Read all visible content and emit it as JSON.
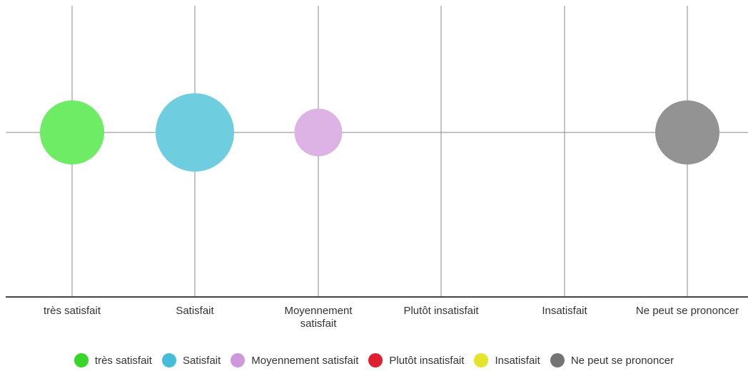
{
  "chart_data": {
    "type": "scatter",
    "variant": "bubble",
    "title": "",
    "xlabel": "",
    "ylabel": "",
    "grid": true,
    "legend_position": "bottom",
    "categories": [
      "très satisfait",
      "Satisfait",
      "Moyennement satisfait",
      "Plutôt insatisfait",
      "Insatisfait",
      "Ne peut se prononcer"
    ],
    "tick_labels": [
      [
        "très satisfait"
      ],
      [
        "Satisfait"
      ],
      [
        "Moyennement",
        "satisfait"
      ],
      [
        "Plutôt insatisfait"
      ],
      [
        "Insatisfait"
      ],
      [
        "Ne peut se prononcer"
      ]
    ],
    "series": [
      {
        "name": "très satisfait",
        "color": "#6fec65",
        "legend_color": "#38d62a",
        "x": "très satisfait",
        "size": 6.7
      },
      {
        "name": "Satisfait",
        "color": "#6fcde0",
        "legend_color": "#45bcd8",
        "x": "Satisfait",
        "size": 10
      },
      {
        "name": "Moyennement satisfait",
        "color": "#dcb3e4",
        "legend_color": "#cf97dc",
        "x": "Moyennement satisfait",
        "size": 3.7
      },
      {
        "name": "Plutôt insatisfait",
        "color": "#e02030",
        "legend_color": "#e02030",
        "x": "Plutôt insatisfait",
        "size": 0
      },
      {
        "name": "Insatisfait",
        "color": "#ecec36",
        "legend_color": "#e4e42c",
        "x": "Insatisfait",
        "size": 0
      },
      {
        "name": "Ne peut se prononcer",
        "color": "#939393",
        "legend_color": "#747474",
        "x": "Ne peut se prononcer",
        "size": 6.7
      }
    ]
  }
}
